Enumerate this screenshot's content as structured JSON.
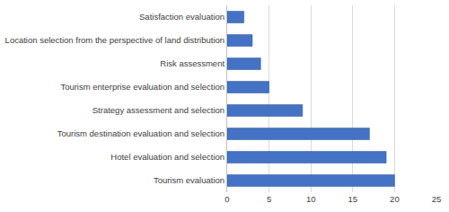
{
  "chart_data": {
    "type": "bar",
    "orientation": "horizontal",
    "categories": [
      "Tourism evaluation",
      "Hotel evaluation and selection",
      "Tourism destination evaluation and selection",
      "Strategy assessment and selection",
      "Tourism enterprise evaluation and selection",
      "Risk assessment",
      "Location selection from the perspective of land distribution",
      "Satisfaction evaluation"
    ],
    "values": [
      20,
      19,
      17,
      9,
      5,
      4,
      3,
      2
    ],
    "color": "#4472c4",
    "xlim": [
      0,
      25
    ],
    "xticks": [
      0,
      5,
      10,
      15,
      20,
      25
    ],
    "grid": true
  }
}
